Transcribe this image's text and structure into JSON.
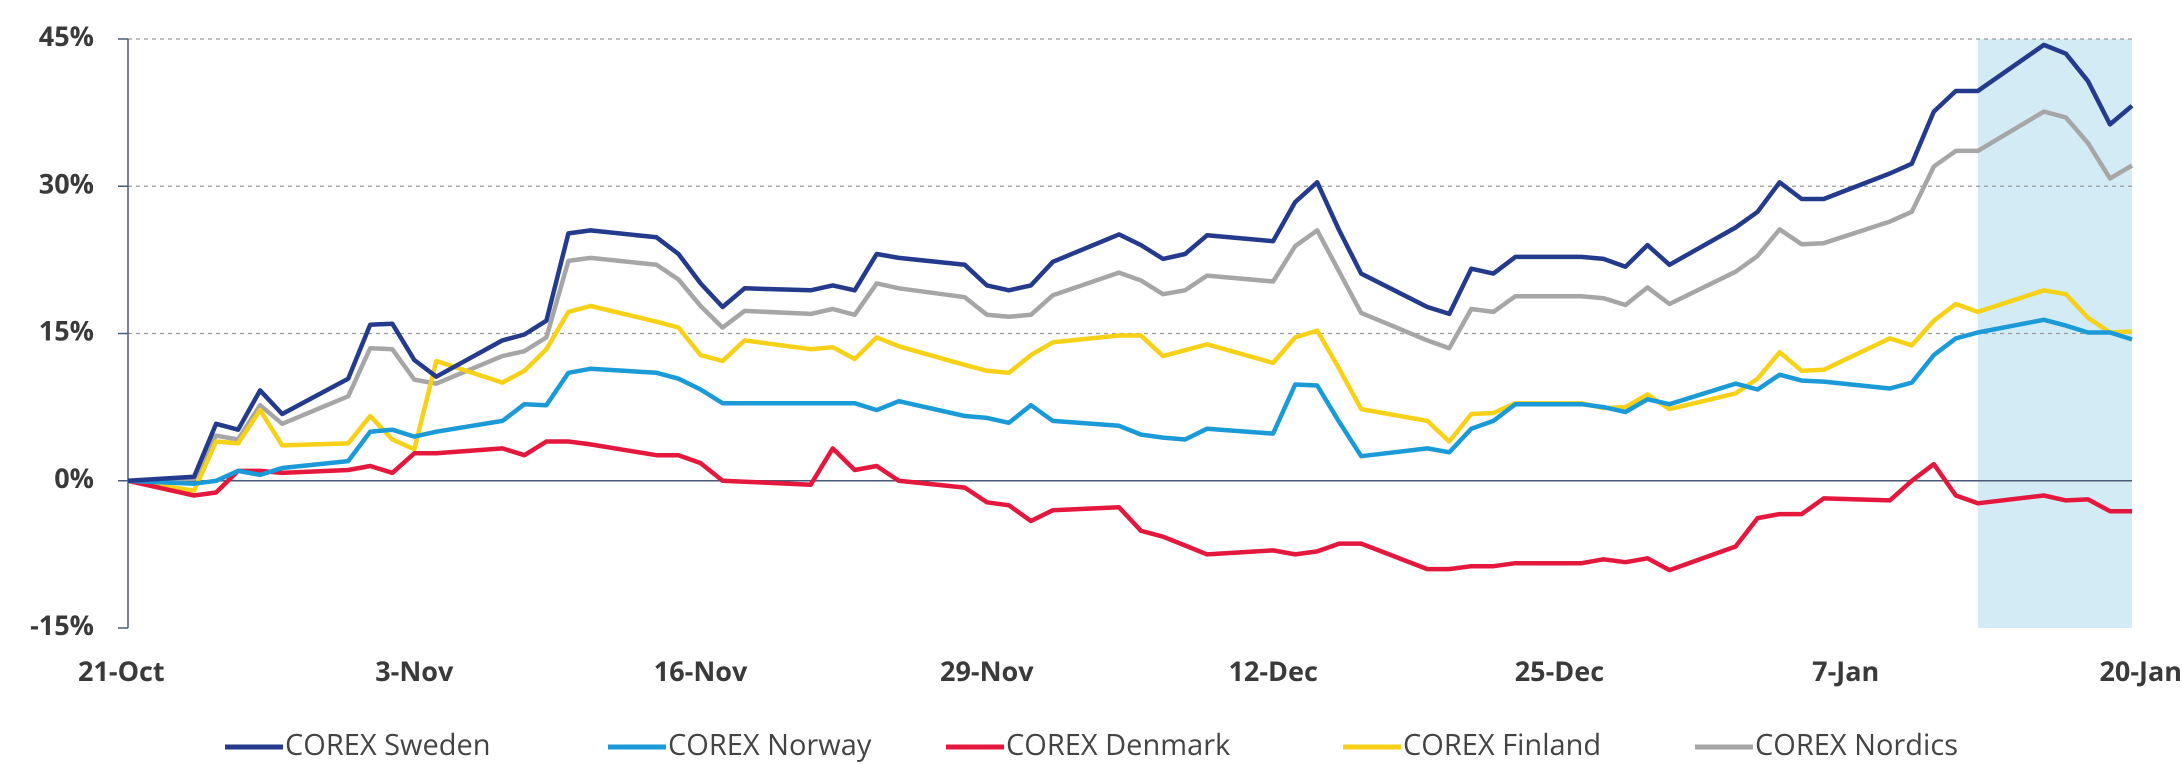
{
  "chart_data": {
    "type": "line",
    "x": [
      0,
      3,
      4,
      5,
      6,
      7,
      10,
      11,
      12,
      13,
      14,
      17,
      18,
      19,
      20,
      21,
      24,
      25,
      26,
      27,
      28,
      31,
      32,
      33,
      34,
      35,
      38,
      39,
      40,
      41,
      42,
      45,
      46,
      47,
      48,
      49,
      52,
      53,
      54,
      55,
      56,
      59,
      60,
      61,
      62,
      63,
      66,
      67,
      68,
      69,
      70,
      73,
      74,
      75,
      76,
      77,
      80,
      81,
      82,
      83,
      84,
      87,
      88,
      89,
      90,
      91
    ],
    "xlim": [
      0,
      91
    ],
    "xticks": [
      {
        "value": 0,
        "label": "21-Oct"
      },
      {
        "value": 13,
        "label": "3-Nov"
      },
      {
        "value": 26,
        "label": "16-Nov"
      },
      {
        "value": 39,
        "label": "29-Nov"
      },
      {
        "value": 52,
        "label": "12-Dec"
      },
      {
        "value": 65,
        "label": "25-Dec"
      },
      {
        "value": 78,
        "label": "7-Jan"
      },
      {
        "value": 91,
        "label": "20-Jan"
      }
    ],
    "ylim": [
      -15,
      45
    ],
    "yticks": [
      {
        "value": -15,
        "label": "-15%"
      },
      {
        "value": 0,
        "label": "0%"
      },
      {
        "value": 15,
        "label": "15%"
      },
      {
        "value": 30,
        "label": "30%"
      },
      {
        "value": 45,
        "label": "45%"
      }
    ],
    "grid": true,
    "highlight_x": [
      84,
      91
    ],
    "highlight_color": "#d3ebf5",
    "series": [
      {
        "name": "COREX Sweden",
        "color": "#243a8c",
        "values": [
          0,
          0.4,
          5.8,
          5.2,
          9.2,
          6.8,
          10.4,
          15.9,
          16,
          12.3,
          10.6,
          14.3,
          14.9,
          16.3,
          25.2,
          25.5,
          24.8,
          23.1,
          20.1,
          17.7,
          19.6,
          19.4,
          19.9,
          19.4,
          23.1,
          22.7,
          22,
          19.9,
          19.4,
          19.9,
          22.3,
          25.1,
          24,
          22.6,
          23.1,
          25,
          24.4,
          28.4,
          30.4,
          25.5,
          21.1,
          17.7,
          17,
          21.6,
          21.1,
          22.8,
          22.8,
          22.6,
          21.8,
          24,
          22,
          25.8,
          27.4,
          30.4,
          28.7,
          28.7,
          31.3,
          32.3,
          37.6,
          39.7,
          39.7,
          44.4,
          43.5,
          40.7,
          36.3,
          38.2
        ]
      },
      {
        "name": "COREX Norway",
        "color": "#1a9ad6",
        "values": [
          0,
          -0.3,
          0,
          1,
          0.6,
          1.3,
          2,
          5,
          5.2,
          4.5,
          5,
          6.1,
          7.8,
          7.7,
          11,
          11.4,
          11,
          10.4,
          9.3,
          7.9,
          7.9,
          7.9,
          7.9,
          7.9,
          7.2,
          8.1,
          6.6,
          6.4,
          5.9,
          7.7,
          6.1,
          5.6,
          4.7,
          4.4,
          4.2,
          5.3,
          4.8,
          9.8,
          9.7,
          6,
          2.5,
          3.3,
          2.9,
          5.3,
          6.1,
          7.8,
          7.8,
          7.5,
          7,
          8.3,
          7.8,
          9.9,
          9.3,
          10.8,
          10.2,
          10.1,
          9.4,
          10,
          12.8,
          14.5,
          15.1,
          16.4,
          15.8,
          15.1,
          15.1,
          14.4
        ]
      },
      {
        "name": "COREX Denmark",
        "color": "#e4183c",
        "values": [
          0,
          -1.5,
          -1.2,
          1,
          1,
          0.8,
          1.1,
          1.5,
          0.8,
          2.8,
          2.8,
          3.3,
          2.6,
          4,
          4,
          3.7,
          2.6,
          2.6,
          1.8,
          0,
          -0.1,
          -0.4,
          3.3,
          1.1,
          1.5,
          0,
          -0.7,
          -2.2,
          -2.5,
          -4.1,
          -3,
          -2.7,
          -5.1,
          -5.7,
          -6.6,
          -7.5,
          -7.1,
          -7.5,
          -7.2,
          -6.4,
          -6.4,
          -9,
          -9,
          -8.7,
          -8.7,
          -8.4,
          -8.4,
          -8,
          -8.3,
          -7.9,
          -9.1,
          -6.7,
          -3.8,
          -3.4,
          -3.4,
          -1.8,
          -2,
          0,
          1.7,
          -1.5,
          -2.3,
          -1.5,
          -2,
          -1.9,
          -3.1,
          -3.1
        ]
      },
      {
        "name": "COREX Finland",
        "color": "#f7d117",
        "values": [
          0,
          -1,
          4,
          3.8,
          7.2,
          3.6,
          3.8,
          6.6,
          4.2,
          3.2,
          12.2,
          10,
          11.2,
          13.4,
          17.2,
          17.8,
          16.2,
          15.6,
          12.8,
          12.2,
          14.3,
          13.4,
          13.6,
          12.4,
          14.6,
          13.7,
          11.8,
          11.2,
          11,
          12.8,
          14.1,
          14.8,
          14.8,
          12.7,
          13.3,
          13.9,
          12,
          14.6,
          15.3,
          11.4,
          7.3,
          6.1,
          4,
          6.8,
          6.9,
          7.9,
          7.9,
          7.4,
          7.5,
          8.8,
          7.3,
          8.9,
          10.4,
          13.1,
          11.2,
          11.3,
          14.5,
          13.8,
          16.3,
          18,
          17.2,
          19.4,
          19,
          16.6,
          15.1,
          15.2
        ]
      },
      {
        "name": "COREX Nordics",
        "color": "#a6a6a6",
        "values": [
          0,
          0.2,
          4.6,
          4.2,
          7.7,
          5.8,
          8.6,
          13.5,
          13.4,
          10.3,
          9.9,
          12.7,
          13.2,
          14.6,
          22.4,
          22.7,
          22,
          20.5,
          17.8,
          15.6,
          17.3,
          17,
          17.5,
          16.9,
          20.1,
          19.6,
          18.7,
          16.9,
          16.7,
          16.9,
          18.9,
          21.2,
          20.4,
          19,
          19.4,
          20.9,
          20.3,
          23.9,
          25.5,
          21.3,
          17.1,
          14.3,
          13.5,
          17.5,
          17.2,
          18.8,
          18.8,
          18.6,
          17.9,
          19.7,
          18,
          21.3,
          22.9,
          25.6,
          24.1,
          24.2,
          26.4,
          27.4,
          32,
          33.6,
          33.6,
          37.6,
          37,
          34.4,
          30.8,
          32.1
        ]
      }
    ]
  }
}
